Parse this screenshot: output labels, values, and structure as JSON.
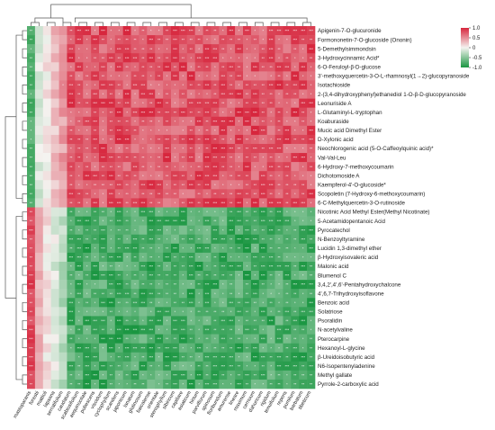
{
  "chart_data": {
    "type": "heatmap",
    "title": "",
    "rows": [
      "Apigenin-7-O-glucuronide",
      "Formononetin-7-O-glucoside (Ononin)",
      "5-Demethylsimmondsin",
      "3-Hydroxycinnamic Acid*",
      "6-O-Feruloyl-β-D-glucose",
      "3'-methoxyquercetin-3-O-L-rhamnosyl(1→2)-glucopyranoside",
      "Isotachioside",
      "2-(3,4-dihydroxyphenyl)ethanediol 1-O-β-D-glucopyranoside",
      "Leonuriside A",
      "L-Glutaminyl-L-tryptophan",
      "Koaburaside",
      "Mucic acid Dimethyl Ester",
      "D-Xylonic acid",
      "Neochlorogenic acid (5-O-Caffeoylquinic acid)*",
      "Val-Val-Leu",
      "6-Hydroxy-7-methoxycoumarin",
      "Dichotomoside A",
      "Kaempferol-4'-O-glucoside*",
      "Scopoletin (7-Hydroxy-6-methoxycoumarin)",
      "6-C-Methylquercetin-3-O-rutinoside",
      "Nicotinic Acid Methyl Ester(Methyl Nicotinate)",
      "5-Acetamidopentanoic Acid",
      "Pyrocatechol",
      "N-Benzoyltyramine",
      "Lucidin 1,3-dimethyl ether",
      "β-Hydroxyisovaleric acid",
      "Malonic acid",
      "Blumenol C",
      "3,4,2',4',6'-Pentahydroxychalcone",
      "4',6,7-Trihydroxyisoflavone",
      "Benzoic acid",
      "Solatriose",
      "Psoralidin",
      "N-acetylvaline",
      "Pterocarpine",
      "Hexanoyl-L-glycine",
      "β-Ureidoisobutyric acid",
      "N6-Isopentenyladenine",
      "Methyl gallate",
      "Pyrrole-2-carboxylic acid"
    ],
    "columns": [
      "mastoparanis",
      "forestii",
      "mattioli",
      "lapsana",
      "serratifolium",
      "caudatum",
      "scabiosifolium",
      "aequinoctiale",
      "pubescens",
      "viscidum",
      "cyclophyllum",
      "scandens",
      "japonicum",
      "lanatum",
      "glutinosum",
      "baicalense",
      "orientale",
      "stenophyllum",
      "sibiricum",
      "capillare",
      "asiaticum",
      "hirtum",
      "parviflorum",
      "spinosum",
      "floribundum",
      "amurense",
      "lineare",
      "maximum",
      "cernuum",
      "dahuricum",
      "rigidum",
      "tenuifolium",
      "repens",
      "pumilum",
      "barbatum",
      "tibeticum"
    ],
    "colorbar": {
      "ticks": [
        1.0,
        0.5,
        0.0,
        -0.5,
        -1.0
      ],
      "tick_labels": [
        "1.0",
        "0.5",
        "0",
        "-0.5",
        "-1.0"
      ],
      "range": [
        -1,
        1
      ]
    },
    "colors": {
      "high": "#d7263d",
      "mid": "#f4f3f0",
      "low": "#1a9641"
    },
    "legend_position": "top-right",
    "cluster_groups": {
      "upper_rows": 20,
      "lower_rows": 20,
      "left_cols": 5
    }
  }
}
